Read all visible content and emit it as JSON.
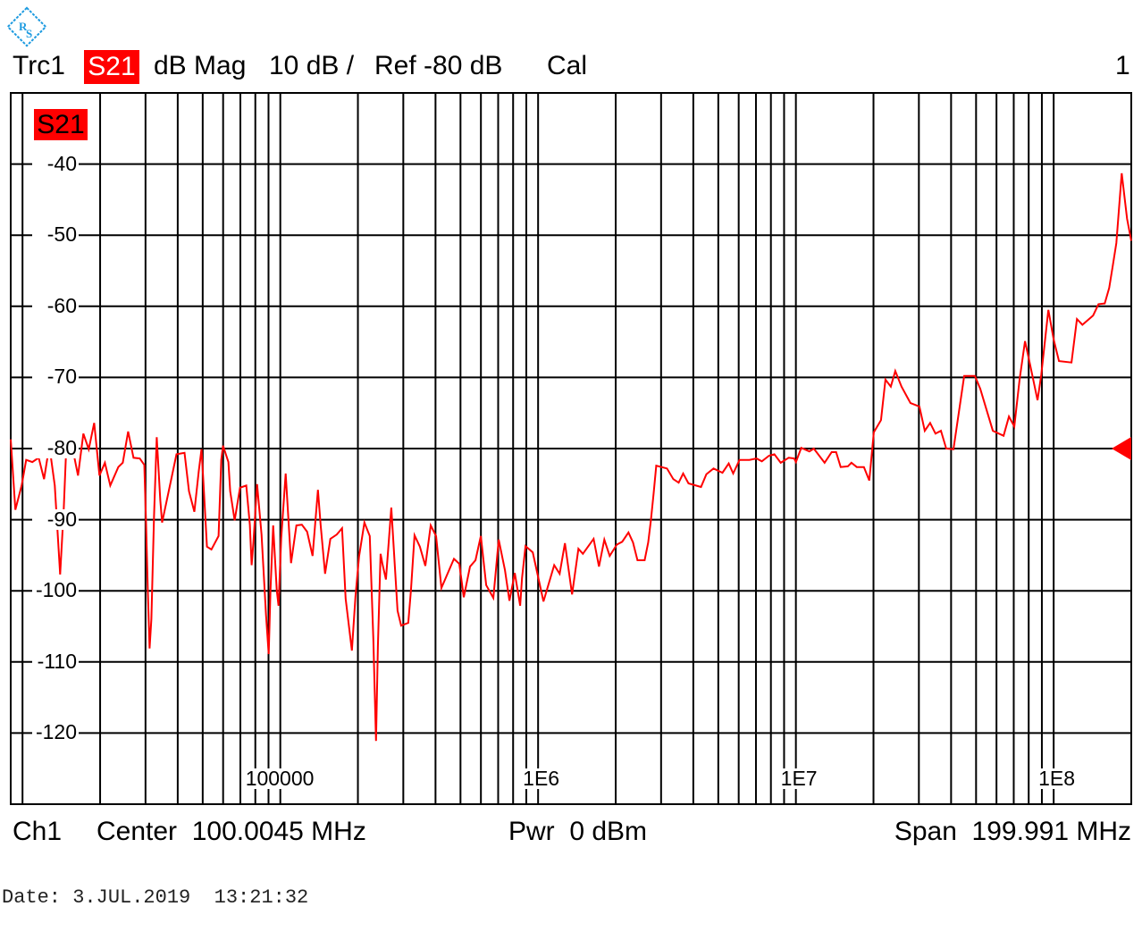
{
  "header": {
    "trace": "Trc1",
    "parameter": "S21",
    "format": "dB Mag",
    "scale": "10 dB /",
    "ref": "Ref -80 dB",
    "cal": "Cal",
    "channel_number": "1"
  },
  "trace_label": "S21",
  "footer": {
    "channel": "Ch1",
    "center": "Center  100.0045 MHz",
    "power": "Pwr  0 dBm",
    "span": "Span  199.991 MHz"
  },
  "date": "Date: 3.JUL.2019  13:21:32",
  "logo": "R&S",
  "colors": {
    "trace": "#ff0000",
    "grid": "#000000",
    "logo": "#1e9be0"
  },
  "chart_data": {
    "type": "line",
    "x_scale": "log",
    "xlim": [
      9000,
      200000000
    ],
    "ylim": [
      -130,
      -30
    ],
    "grid": true,
    "y_ticks": [
      -40,
      -50,
      -60,
      -70,
      -80,
      -90,
      -100,
      -110,
      -120
    ],
    "y_tick_labels": [
      "-40",
      "-50",
      "-60",
      "-70",
      "-80",
      "-90",
      "-100",
      "-110",
      "-120"
    ],
    "x_ticks": [
      100000,
      1000000,
      10000000,
      100000000
    ],
    "x_tick_labels": [
      "100000",
      "1E6",
      "1E7",
      "1E8"
    ],
    "reference_level": -80,
    "series": [
      {
        "name": "S21",
        "color": "#ff0000",
        "x": [
          9000,
          9380,
          9920,
          10330,
          10920,
          11550,
          12120,
          12710,
          13340,
          13990,
          14450,
          14800,
          15520,
          16420,
          17220,
          18070,
          18960,
          19880,
          20870,
          21890,
          23520,
          24480,
          25690,
          26950,
          28500,
          29670,
          30150,
          30630,
          31120,
          31620,
          32390,
          33170,
          34250,
          34800,
          37700,
          39560,
          42510,
          44240,
          46420,
          48310,
          49480,
          50280,
          51920,
          54040,
          57600,
          58990,
          59950,
          62890,
          63910,
          66510,
          69780,
          73800,
          76190,
          77430,
          78670,
          81240,
          84560,
          87990,
          90140,
          91590,
          93800,
          96850,
          98420,
          100800,
          104900,
          110100,
          115500,
          121200,
          127100,
          133400,
          139900,
          143300,
          149200,
          156400,
          165500,
          173600,
          179300,
          189600,
          195700,
          202100,
          212000,
          222400,
          229600,
          235200,
          239000,
          244800,
          248700,
          256900,
          269500,
          285000,
          294300,
          313700,
          321300,
          331700,
          348000,
          365200,
          383100,
          401900,
          421700,
          471700,
          494800,
          515000,
          544600,
          571400,
          599500,
          628900,
          670700,
          703400,
          743800,
          774300,
          812400,
          852200,
          866000,
          894000,
          953300,
          1049000,
          1155000,
          1212000,
          1271000,
          1355000,
          1433000,
          1492000,
          1642000,
          1722000,
          1807000,
          1896000,
          2021000,
          2120000,
          2242000,
          2334000,
          2429000,
          2590000,
          2674000,
          2738000,
          2805000,
          2873000,
          3162000,
          3345000,
          3509000,
          3652000,
          3831000,
          4284000,
          4495000,
          4792000,
          5192000,
          5490000,
          5714000,
          6044000,
          6598000,
          7034000,
          7381000,
          7867000,
          8254000,
          8730000,
          9380000,
          9842000,
          10000000,
          10490000,
          11280000,
          11730000,
          12920000,
          13770000,
          14330000,
          14920000,
          15910000,
          16420000,
          17220000,
          18360000,
          19260000,
          20060000,
          21380000,
          22250000,
          23340000,
          24290000,
          25690000,
          27820000,
          30150000,
          31620000,
          33170000,
          34800000,
          36520000,
          38310000,
          40840000,
          44950000,
          49480000,
          51920000,
          55370000,
          58070000,
          63910000,
          67060000,
          70340000,
          73810000,
          77430000,
          81240000,
          86600000,
          89430000,
          95330000,
          100000000,
          104900000,
          117300000,
          123100000,
          129200000,
          142200000,
          149200000,
          157800000,
          164200000,
          169500000,
          175100000,
          183600000,
          192600000,
          200000000
        ],
        "y": [
          -78.7,
          -88.6,
          -85.2,
          -81.6,
          -81.9,
          -81.3,
          -84.3,
          -79.6,
          -85.2,
          -97.7,
          -88.6,
          -79.4,
          -79.4,
          -83.8,
          -77.9,
          -80.1,
          -76.4,
          -83.8,
          -82.0,
          -85.2,
          -82.6,
          -82.0,
          -77.6,
          -81.3,
          -81.4,
          -82.3,
          -90.7,
          -99.9,
          -108.1,
          -104.0,
          -89.4,
          -78.4,
          -87.3,
          -90.4,
          -84.4,
          -80.8,
          -80.6,
          -86.0,
          -88.9,
          -83.1,
          -80.1,
          -84.4,
          -93.8,
          -94.2,
          -92.3,
          -81.6,
          -79.6,
          -81.9,
          -86.0,
          -90.1,
          -85.5,
          -85.2,
          -90.7,
          -96.4,
          -93.2,
          -85.0,
          -92.1,
          -103.4,
          -108.9,
          -99.9,
          -90.8,
          -99.9,
          -102.1,
          -92.6,
          -83.5,
          -96.1,
          -90.8,
          -90.7,
          -91.7,
          -95.1,
          -85.8,
          -90.7,
          -97.6,
          -92.7,
          -92.1,
          -91.2,
          -101.1,
          -108.4,
          -100.8,
          -95.2,
          -90.4,
          -92.3,
          -106.8,
          -121.1,
          -107.8,
          -94.8,
          -96.1,
          -98.4,
          -88.3,
          -102.8,
          -104.9,
          -104.5,
          -99.9,
          -92.2,
          -93.8,
          -96.5,
          -90.8,
          -92.3,
          -99.6,
          -95.5,
          -96.2,
          -100.9,
          -96.6,
          -95.7,
          -92.3,
          -99.2,
          -101.0,
          -92.8,
          -97.1,
          -101.4,
          -97.5,
          -102.1,
          -98.2,
          -93.7,
          -94.6,
          -101.5,
          -96.4,
          -97.6,
          -93.3,
          -100.5,
          -94.1,
          -94.8,
          -92.7,
          -96.6,
          -92.8,
          -95.1,
          -93.5,
          -93.1,
          -91.8,
          -93.2,
          -95.7,
          -95.7,
          -93.2,
          -90.1,
          -86.4,
          -82.4,
          -82.8,
          -84.3,
          -84.8,
          -83.5,
          -84.9,
          -85.4,
          -83.6,
          -82.8,
          -83.4,
          -82.1,
          -83.5,
          -81.6,
          -81.6,
          -81.4,
          -81.8,
          -81.0,
          -80.8,
          -82.0,
          -81.3,
          -81.4,
          -81.9,
          -79.9,
          -80.4,
          -80.0,
          -82.0,
          -80.5,
          -80.5,
          -82.6,
          -82.5,
          -82.0,
          -82.6,
          -82.6,
          -84.5,
          -77.7,
          -76.0,
          -70.3,
          -71.3,
          -69.1,
          -71.3,
          -73.6,
          -74.1,
          -77.5,
          -76.4,
          -77.9,
          -77.5,
          -80.0,
          -80.1,
          -69.8,
          -69.8,
          -71.6,
          -75.0,
          -77.5,
          -78.2,
          -75.5,
          -76.9,
          -70.2,
          -64.9,
          -68.4,
          -73.2,
          -69.7,
          -60.5,
          -64.7,
          -67.7,
          -67.9,
          -61.8,
          -62.6,
          -61.3,
          -59.7,
          -59.6,
          -57.4,
          -54.3,
          -51.1,
          -41.3,
          -47.7,
          -50.8
        ]
      }
    ]
  }
}
